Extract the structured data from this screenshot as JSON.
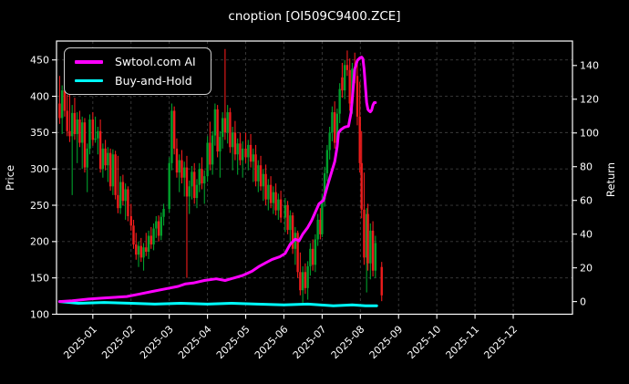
{
  "title": "cnoption [OI509C9400.ZCE]",
  "legend": {
    "items": [
      {
        "label": "Swtool.com AI",
        "color": "#ff00ff"
      },
      {
        "label": "Buy-and-Hold",
        "color": "#00ffff"
      }
    ]
  },
  "axes": {
    "left_label": "Price",
    "right_label": "Return",
    "left_ticks": [
      100,
      150,
      200,
      250,
      300,
      350,
      400,
      450
    ],
    "right_ticks": [
      0,
      20,
      40,
      60,
      80,
      100,
      120,
      140
    ],
    "x_ticks": [
      "2025-01",
      "2025-02",
      "2025-03",
      "2025-04",
      "2025-05",
      "2025-06",
      "2025-07",
      "2025-08",
      "2025-09",
      "2025-10",
      "2025-11",
      "2025-12"
    ]
  },
  "colors": {
    "background": "#000000",
    "text": "#ffffff",
    "grid": "#3c3c3c",
    "spine": "#ffffff",
    "up_candle": "#00a02c",
    "down_candle": "#ee1c1c",
    "ai_line": "#ff00ff",
    "bh_line": "#00ffff"
  },
  "chart_data": {
    "type": "candlestick+line",
    "title": "cnoption [OI509C9400.ZCE]",
    "xlabel": "",
    "ylabel_left": "Price",
    "ylabel_right": "Return",
    "grid": true,
    "legend_position": "upper-left",
    "price_lim": [
      100,
      476
    ],
    "return_lim": [
      -7.5,
      154.5
    ],
    "x_lim_months": [
      -0.95,
      12.55
    ],
    "candles": [
      [
        "2024-12-05",
        390,
        428,
        362,
        370
      ],
      [
        "2024-12-07",
        370,
        415,
        348,
        408
      ],
      [
        "2024-12-09",
        408,
        420,
        372,
        380
      ],
      [
        "2024-12-11",
        380,
        402,
        345,
        352
      ],
      [
        "2024-12-13",
        352,
        462,
        337,
        345
      ],
      [
        "2024-12-15",
        345,
        388,
        264,
        377
      ],
      [
        "2024-12-17",
        377,
        398,
        340,
        348
      ],
      [
        "2024-12-19",
        348,
        378,
        308,
        368
      ],
      [
        "2024-12-21",
        368,
        380,
        330,
        336
      ],
      [
        "2024-12-23",
        336,
        372,
        300,
        364
      ],
      [
        "2024-12-25",
        364,
        370,
        295,
        302
      ],
      [
        "2024-12-27",
        302,
        335,
        268,
        328
      ],
      [
        "2024-12-29",
        328,
        375,
        320,
        368
      ],
      [
        "2025-01-01",
        368,
        378,
        332,
        340
      ],
      [
        "2025-01-03",
        340,
        372,
        336,
        342
      ],
      [
        "2025-01-05",
        342,
        358,
        320,
        352
      ],
      [
        "2025-01-07",
        352,
        368,
        295,
        300
      ],
      [
        "2025-01-09",
        300,
        335,
        288,
        328
      ],
      [
        "2025-01-11",
        328,
        340,
        298,
        305
      ],
      [
        "2025-01-13",
        305,
        330,
        282,
        322
      ],
      [
        "2025-01-15",
        322,
        328,
        270,
        276
      ],
      [
        "2025-01-17",
        276,
        327,
        264,
        320
      ],
      [
        "2025-01-19",
        320,
        325,
        258,
        264
      ],
      [
        "2025-01-21",
        264,
        318,
        239,
        246
      ],
      [
        "2025-01-23",
        246,
        290,
        238,
        282
      ],
      [
        "2025-01-25",
        282,
        292,
        250,
        256
      ],
      [
        "2025-01-27",
        256,
        280,
        230,
        272
      ],
      [
        "2025-01-29",
        272,
        276,
        228,
        235
      ],
      [
        "2025-02-01",
        235,
        252,
        215,
        222
      ],
      [
        "2025-02-03",
        222,
        230,
        190,
        196
      ],
      [
        "2025-02-05",
        196,
        212,
        175,
        182
      ],
      [
        "2025-02-07",
        182,
        200,
        165,
        194
      ],
      [
        "2025-02-09",
        194,
        205,
        172,
        178
      ],
      [
        "2025-02-11",
        178,
        198,
        160,
        192
      ],
      [
        "2025-02-13",
        192,
        212,
        180,
        186
      ],
      [
        "2025-02-15",
        186,
        215,
        176,
        208
      ],
      [
        "2025-02-17",
        208,
        220,
        190,
        196
      ],
      [
        "2025-02-19",
        196,
        225,
        188,
        218
      ],
      [
        "2025-02-21",
        218,
        235,
        205,
        228
      ],
      [
        "2025-02-23",
        228,
        236,
        200,
        208
      ],
      [
        "2025-02-25",
        208,
        240,
        202,
        234
      ],
      [
        "2025-02-27",
        234,
        252,
        222,
        245
      ],
      [
        "2025-03-01",
        245,
        316,
        240,
        308
      ],
      [
        "2025-03-03",
        308,
        390,
        298,
        380
      ],
      [
        "2025-03-05",
        380,
        386,
        320,
        328
      ],
      [
        "2025-03-07",
        328,
        342,
        288,
        295
      ],
      [
        "2025-03-09",
        295,
        320,
        268,
        312
      ],
      [
        "2025-03-11",
        312,
        326,
        280,
        288
      ],
      [
        "2025-03-13",
        288,
        310,
        262,
        302
      ],
      [
        "2025-03-15",
        302,
        318,
        150,
        262
      ],
      [
        "2025-03-17",
        262,
        284,
        238,
        276
      ],
      [
        "2025-03-19",
        276,
        304,
        258,
        296
      ],
      [
        "2025-03-21",
        296,
        308,
        252,
        260
      ],
      [
        "2025-03-23",
        260,
        286,
        246,
        278
      ],
      [
        "2025-03-25",
        278,
        308,
        268,
        300
      ],
      [
        "2025-03-27",
        300,
        316,
        272,
        280
      ],
      [
        "2025-03-29",
        280,
        298,
        252,
        290
      ],
      [
        "2025-04-01",
        290,
        345,
        282,
        336
      ],
      [
        "2025-04-03",
        336,
        365,
        298,
        306
      ],
      [
        "2025-04-05",
        306,
        352,
        292,
        346
      ],
      [
        "2025-04-07",
        346,
        390,
        332,
        382
      ],
      [
        "2025-04-09",
        382,
        388,
        316,
        324
      ],
      [
        "2025-04-11",
        324,
        352,
        288,
        344
      ],
      [
        "2025-04-13",
        344,
        378,
        328,
        370
      ],
      [
        "2025-04-15",
        370,
        465,
        340,
        350
      ],
      [
        "2025-04-17",
        350,
        388,
        335,
        378
      ],
      [
        "2025-04-19",
        378,
        384,
        322,
        330
      ],
      [
        "2025-04-21",
        330,
        358,
        298,
        350
      ],
      [
        "2025-04-23",
        350,
        366,
        312,
        320
      ],
      [
        "2025-04-25",
        320,
        342,
        292,
        335
      ],
      [
        "2025-04-27",
        335,
        350,
        305,
        312
      ],
      [
        "2025-04-29",
        312,
        338,
        288,
        328
      ],
      [
        "2025-05-01",
        328,
        350,
        308,
        316
      ],
      [
        "2025-05-03",
        316,
        340,
        298,
        333
      ],
      [
        "2025-05-05",
        333,
        348,
        302,
        310
      ],
      [
        "2025-05-07",
        310,
        328,
        282,
        320
      ],
      [
        "2025-05-09",
        320,
        333,
        276,
        283
      ],
      [
        "2025-05-11",
        283,
        312,
        268,
        305
      ],
      [
        "2025-05-13",
        305,
        318,
        270,
        276
      ],
      [
        "2025-05-15",
        276,
        300,
        256,
        293
      ],
      [
        "2025-05-17",
        293,
        306,
        250,
        258
      ],
      [
        "2025-05-19",
        258,
        286,
        243,
        278
      ],
      [
        "2025-05-21",
        278,
        290,
        246,
        253
      ],
      [
        "2025-05-23",
        253,
        276,
        238,
        268
      ],
      [
        "2025-05-25",
        268,
        280,
        236,
        243
      ],
      [
        "2025-05-27",
        243,
        266,
        230,
        258
      ],
      [
        "2025-05-29",
        258,
        270,
        226,
        233
      ],
      [
        "2025-06-02",
        233,
        260,
        213,
        250
      ],
      [
        "2025-06-04",
        250,
        256,
        210,
        216
      ],
      [
        "2025-06-06",
        216,
        243,
        198,
        236
      ],
      [
        "2025-06-08",
        236,
        240,
        183,
        190
      ],
      [
        "2025-06-10",
        190,
        220,
        168,
        212
      ],
      [
        "2025-06-12",
        212,
        215,
        150,
        158
      ],
      [
        "2025-06-14",
        158,
        185,
        126,
        133
      ],
      [
        "2025-06-16",
        133,
        166,
        116,
        158
      ],
      [
        "2025-06-18",
        158,
        170,
        128,
        136
      ],
      [
        "2025-06-20",
        136,
        173,
        120,
        166
      ],
      [
        "2025-06-22",
        166,
        198,
        153,
        190
      ],
      [
        "2025-06-24",
        190,
        203,
        160,
        168
      ],
      [
        "2025-06-26",
        168,
        210,
        158,
        203
      ],
      [
        "2025-06-28",
        203,
        238,
        194,
        230
      ],
      [
        "2025-06-30",
        230,
        246,
        203,
        210
      ],
      [
        "2025-07-01",
        210,
        266,
        206,
        258
      ],
      [
        "2025-07-03",
        258,
        303,
        248,
        294
      ],
      [
        "2025-07-05",
        294,
        333,
        283,
        326
      ],
      [
        "2025-07-07",
        326,
        358,
        313,
        350
      ],
      [
        "2025-07-09",
        350,
        386,
        338,
        378
      ],
      [
        "2025-07-11",
        378,
        393,
        328,
        336
      ],
      [
        "2025-07-13",
        336,
        383,
        323,
        376
      ],
      [
        "2025-07-15",
        376,
        418,
        363,
        410
      ],
      [
        "2025-07-17",
        426,
        446,
        398,
        408
      ],
      [
        "2025-07-19",
        408,
        450,
        396,
        443
      ],
      [
        "2025-07-21",
        443,
        463,
        428,
        436
      ],
      [
        "2025-07-23",
        436,
        452,
        380,
        390
      ],
      [
        "2025-07-25",
        390,
        446,
        376,
        438
      ],
      [
        "2025-07-27",
        438,
        460,
        418,
        428
      ],
      [
        "2025-07-29",
        428,
        452,
        360,
        372
      ],
      [
        "2025-07-31",
        372,
        420,
        295,
        308
      ],
      [
        "2025-08-02",
        308,
        352,
        232,
        244
      ],
      [
        "2025-08-04",
        244,
        295,
        168,
        178
      ],
      [
        "2025-08-06",
        178,
        246,
        130,
        238
      ],
      [
        "2025-08-07",
        238,
        252,
        160,
        170
      ],
      [
        "2025-08-09",
        170,
        225,
        148,
        215
      ],
      [
        "2025-08-11",
        215,
        228,
        152,
        160
      ],
      [
        "2025-08-13",
        160,
        208,
        150,
        198
      ],
      [
        "2025-08-18",
        165,
        172,
        118,
        126
      ]
    ],
    "series": [
      {
        "name": "Swtool.com AI",
        "axis": "return",
        "color": "#ff00ff",
        "points": [
          [
            "2024-12-05",
            0
          ],
          [
            "2024-12-15",
            0.5
          ],
          [
            "2024-12-28",
            1.5
          ],
          [
            "2025-01-08",
            2
          ],
          [
            "2025-01-18",
            2.5
          ],
          [
            "2025-01-28",
            3
          ],
          [
            "2025-02-08",
            4.5
          ],
          [
            "2025-02-18",
            6
          ],
          [
            "2025-02-28",
            7.5
          ],
          [
            "2025-03-08",
            9
          ],
          [
            "2025-03-14",
            10.5
          ],
          [
            "2025-03-20",
            11
          ],
          [
            "2025-03-29",
            12.5
          ],
          [
            "2025-04-08",
            13.5
          ],
          [
            "2025-04-15",
            12.5
          ],
          [
            "2025-04-22",
            14
          ],
          [
            "2025-04-29",
            15.5
          ],
          [
            "2025-05-06",
            18
          ],
          [
            "2025-05-12",
            21
          ],
          [
            "2025-05-17",
            23
          ],
          [
            "2025-05-22",
            25
          ],
          [
            "2025-05-28",
            26.5
          ],
          [
            "2025-06-02",
            28.5
          ],
          [
            "2025-06-06",
            34
          ],
          [
            "2025-06-10",
            37
          ],
          [
            "2025-06-13",
            36
          ],
          [
            "2025-06-16",
            40
          ],
          [
            "2025-06-20",
            44
          ],
          [
            "2025-06-23",
            48
          ],
          [
            "2025-06-26",
            53
          ],
          [
            "2025-06-29",
            58
          ],
          [
            "2025-07-02",
            60
          ],
          [
            "2025-07-05",
            68
          ],
          [
            "2025-07-07",
            73
          ],
          [
            "2025-07-09",
            78
          ],
          [
            "2025-07-11",
            83
          ],
          [
            "2025-07-13",
            92
          ],
          [
            "2025-07-14",
            100
          ],
          [
            "2025-07-16",
            102
          ],
          [
            "2025-07-19",
            103.5
          ],
          [
            "2025-07-22",
            104
          ],
          [
            "2025-07-24",
            112
          ],
          [
            "2025-07-25",
            120
          ],
          [
            "2025-07-27",
            138
          ],
          [
            "2025-07-29",
            143
          ],
          [
            "2025-07-31",
            144.5
          ],
          [
            "2025-08-02",
            145
          ],
          [
            "2025-08-03",
            144
          ],
          [
            "2025-08-04",
            138
          ],
          [
            "2025-08-05",
            128
          ],
          [
            "2025-08-06",
            118
          ],
          [
            "2025-08-07",
            114
          ],
          [
            "2025-08-08",
            113
          ],
          [
            "2025-08-09",
            112.5
          ],
          [
            "2025-08-10",
            113.5
          ],
          [
            "2025-08-11",
            116.5
          ],
          [
            "2025-08-12",
            118
          ],
          [
            "2025-08-13",
            118
          ]
        ]
      },
      {
        "name": "Buy-and-Hold",
        "axis": "return",
        "color": "#00ffff",
        "points": [
          [
            "2024-12-05",
            0
          ],
          [
            "2024-12-20",
            -1
          ],
          [
            "2025-01-10",
            -0.5
          ],
          [
            "2025-02-01",
            -1
          ],
          [
            "2025-02-20",
            -1.5
          ],
          [
            "2025-03-10",
            -1
          ],
          [
            "2025-04-01",
            -1.5
          ],
          [
            "2025-04-20",
            -1
          ],
          [
            "2025-05-10",
            -1.5
          ],
          [
            "2025-06-01",
            -2
          ],
          [
            "2025-06-20",
            -1.5
          ],
          [
            "2025-07-10",
            -2.5
          ],
          [
            "2025-07-25",
            -2
          ],
          [
            "2025-08-05",
            -2.5
          ],
          [
            "2025-08-14",
            -2.5
          ]
        ]
      }
    ]
  }
}
